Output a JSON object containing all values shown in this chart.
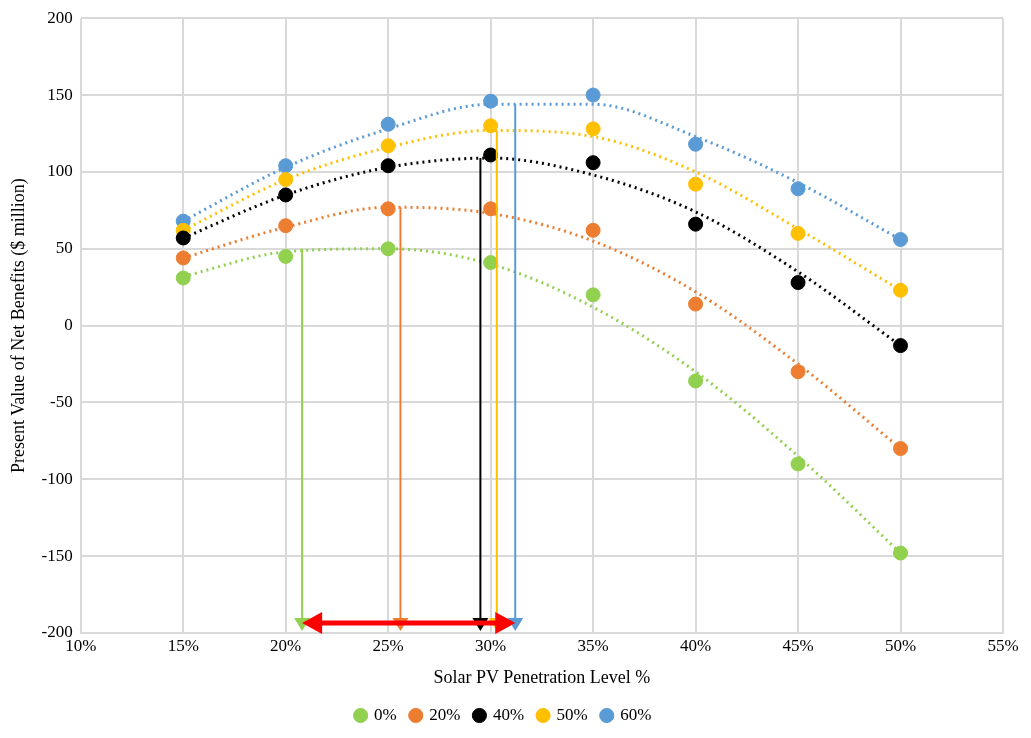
{
  "chart_data": {
    "type": "scatter",
    "xlabel": "Solar PV Penetration Level %",
    "ylabel": "Present Value of Net Benefits ($ million)",
    "x": [
      15,
      20,
      25,
      30,
      35,
      40,
      45,
      50
    ],
    "series": [
      {
        "name": "0%",
        "color": "#92d050",
        "values": [
          31,
          45,
          50,
          41,
          20,
          -36,
          -90,
          -148
        ]
      },
      {
        "name": "20%",
        "color": "#ed7d31",
        "values": [
          44,
          65,
          76,
          76,
          62,
          14,
          -30,
          -80
        ]
      },
      {
        "name": "40%",
        "color": "#000000",
        "values": [
          57,
          85,
          104,
          111,
          106,
          66,
          28,
          -13
        ]
      },
      {
        "name": "50%",
        "color": "#ffc000",
        "values": [
          62,
          95,
          117,
          130,
          128,
          92,
          60,
          23
        ]
      },
      {
        "name": "60%",
        "color": "#5b9bd5",
        "values": [
          68,
          104,
          131,
          146,
          150,
          118,
          89,
          56
        ]
      },
      {
        "type": "line",
        "color": "#92d050",
        "line_style": "dotted",
        "marker": "none",
        "x": [
          15,
          20,
          25,
          30,
          35,
          40,
          45,
          50
        ],
        "values": [
          32,
          48,
          50,
          40,
          12,
          -30,
          -85,
          -148
        ]
      },
      {
        "type": "line",
        "color": "#ed7d31",
        "line_style": "dotted",
        "marker": "none",
        "x": [
          15,
          20,
          25,
          30,
          35,
          40,
          45,
          50
        ],
        "values": [
          44,
          64,
          77,
          73,
          55,
          22,
          -25,
          -80
        ]
      },
      {
        "type": "line",
        "color": "#000000",
        "line_style": "dotted",
        "marker": "none",
        "x": [
          15,
          20,
          25,
          30,
          35,
          40,
          45,
          50
        ],
        "values": [
          57,
          85,
          103,
          109,
          98,
          74,
          35,
          -13
        ]
      },
      {
        "type": "line",
        "color": "#ffc000",
        "line_style": "dotted",
        "marker": "none",
        "x": [
          15,
          20,
          25,
          30,
          35,
          40,
          45,
          50
        ],
        "values": [
          62,
          95,
          116,
          127,
          123,
          100,
          63,
          23
        ]
      },
      {
        "type": "line",
        "color": "#5b9bd5",
        "line_style": "dotted",
        "marker": "none",
        "x": [
          15,
          20,
          25,
          30,
          35,
          40,
          45,
          50
        ],
        "values": [
          68,
          103,
          128,
          144,
          144,
          123,
          93,
          56
        ]
      }
    ],
    "ref_lines": [
      {
        "axis": "x",
        "value": 20.8,
        "color": "#92d050"
      },
      {
        "axis": "x",
        "value": 25.6,
        "color": "#ed7d31"
      },
      {
        "axis": "x",
        "value": 29.5,
        "color": "#000000"
      },
      {
        "axis": "x",
        "value": 30.3,
        "color": "#ffc000"
      },
      {
        "axis": "x",
        "value": 31.2,
        "color": "#5b9bd5"
      }
    ],
    "xlim": [
      10,
      55
    ],
    "xticks": [
      {
        "value": 10,
        "label": "10%"
      },
      {
        "value": 15,
        "label": "15%"
      },
      {
        "value": 20,
        "label": "20%"
      },
      {
        "value": 25,
        "label": "25%"
      },
      {
        "value": 30,
        "label": "30%"
      },
      {
        "value": 35,
        "label": "35%"
      },
      {
        "value": 40,
        "label": "40%"
      },
      {
        "value": 45,
        "label": "45%"
      },
      {
        "value": 50,
        "label": "50%"
      },
      {
        "value": 55,
        "label": "55%"
      }
    ],
    "ylim": [
      -200,
      200
    ],
    "yticks": [
      -200,
      -150,
      -100,
      -50,
      0,
      50,
      100,
      150,
      200
    ],
    "grid": true,
    "legend": "bottom",
    "marker": "circle"
  }
}
